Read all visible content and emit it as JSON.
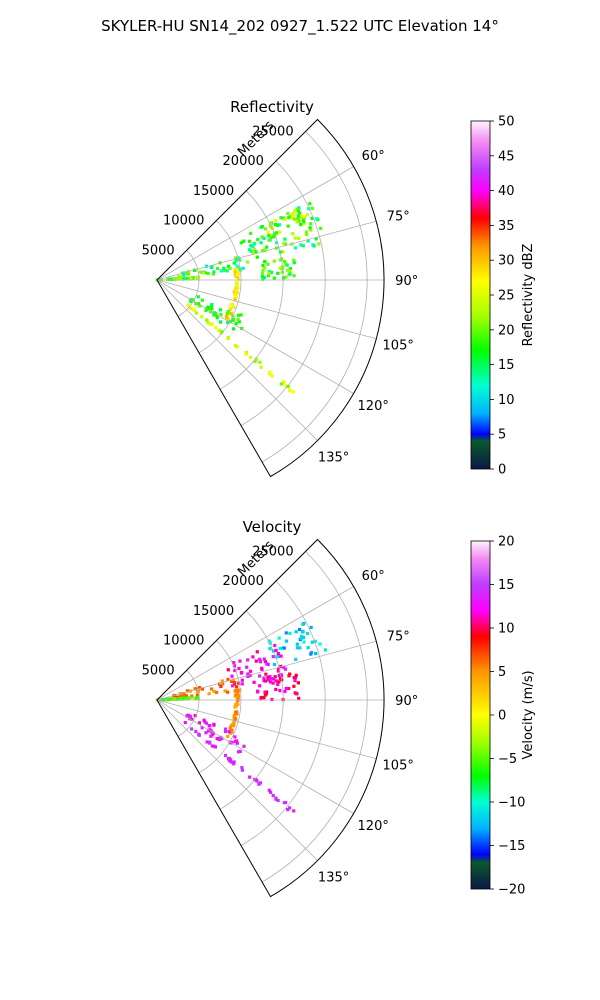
{
  "figure": {
    "suptitle": "SKYLER-HU  SN14_202  0927_1.522 UTC Elevation 14°"
  },
  "chart_data": [
    {
      "type": "heatmap",
      "projection": "polar-sector",
      "title": "Reflectivity",
      "radial_axis_label": "Meters",
      "radial_ticks": [
        5000,
        10000,
        15000,
        20000,
        25000
      ],
      "radial_tick_labels": [
        "5000",
        "10000",
        "15000",
        "20000",
        "25000"
      ],
      "rlim": [
        0,
        27000
      ],
      "azimuth_range_deg": [
        45,
        150
      ],
      "azimuth_ticks": [
        60,
        75,
        90,
        105,
        120,
        135
      ],
      "azimuth_tick_labels": [
        "60°",
        "75°",
        "90°",
        "105°",
        "120°",
        "135°"
      ],
      "grid": true,
      "colorbar": {
        "label": "Reflectivity dBZ",
        "range": [
          0,
          50
        ],
        "ticks": [
          0,
          5,
          10,
          15,
          20,
          25,
          30,
          35,
          40,
          45,
          50
        ],
        "tick_labels": [
          "0",
          "5",
          "10",
          "15",
          "20",
          "25",
          "30",
          "35",
          "40",
          "45",
          "50"
        ],
        "colormap": "pyart_HomeyerRainbow",
        "stops": [
          {
            "v": 0,
            "c": "#0b1747"
          },
          {
            "v": 4,
            "c": "#0a5a2a"
          },
          {
            "v": 5,
            "c": "#0000ff"
          },
          {
            "v": 8,
            "c": "#00b4ff"
          },
          {
            "v": 12,
            "c": "#00ffd2"
          },
          {
            "v": 17,
            "c": "#00ff00"
          },
          {
            "v": 22,
            "c": "#a6ff00"
          },
          {
            "v": 27,
            "c": "#ffff00"
          },
          {
            "v": 32,
            "c": "#ff9600"
          },
          {
            "v": 36,
            "c": "#ff0000"
          },
          {
            "v": 40,
            "c": "#ff00ff"
          },
          {
            "v": 43,
            "c": "#bf3cff"
          },
          {
            "v": 47,
            "c": "#f28cf2"
          },
          {
            "v": 50,
            "c": "#fff2ff"
          }
        ]
      },
      "returns": [
        {
          "feature": "storm-cell",
          "az": [
            63,
            78
          ],
          "r": [
            10000,
            20500
          ],
          "value": 17,
          "spread": 6
        },
        {
          "feature": "storm-core",
          "az": [
            63,
            70
          ],
          "r": [
            14000,
            19500
          ],
          "value": 22,
          "spread": 5
        },
        {
          "feature": "cell-east",
          "az": [
            80,
            90
          ],
          "r": [
            12500,
            16500
          ],
          "value": 18,
          "spread": 4
        },
        {
          "feature": "near-band",
          "az": [
            74,
            84
          ],
          "r": [
            2500,
            11000
          ],
          "value": 17,
          "spread": 6
        },
        {
          "feature": "clutter-ray",
          "az": [
            86,
            88
          ],
          "r": [
            0,
            5000
          ],
          "value": 18,
          "spread": 6
        },
        {
          "feature": "ring-arc",
          "az": [
            80,
            120
          ],
          "r": [
            9300,
            9700
          ],
          "value": 28,
          "spread": 3
        },
        {
          "feature": "ray-southeast",
          "az": [
            128.5,
            130
          ],
          "r": [
            4000,
            21000
          ],
          "value": 24,
          "spread": 4
        },
        {
          "feature": "spots-southeast",
          "az": [
            112,
            124
          ],
          "r": [
            4000,
            12000
          ],
          "value": 17,
          "spread": 3
        }
      ]
    },
    {
      "type": "heatmap",
      "projection": "polar-sector",
      "title": "Velocity",
      "radial_axis_label": "Meters",
      "radial_ticks": [
        5000,
        10000,
        15000,
        20000,
        25000
      ],
      "radial_tick_labels": [
        "5000",
        "10000",
        "15000",
        "20000",
        "25000"
      ],
      "rlim": [
        0,
        27000
      ],
      "azimuth_range_deg": [
        45,
        150
      ],
      "azimuth_ticks": [
        60,
        75,
        90,
        105,
        120,
        135
      ],
      "azimuth_tick_labels": [
        "60°",
        "75°",
        "90°",
        "105°",
        "120°",
        "135°"
      ],
      "grid": true,
      "colorbar": {
        "label": "Velocity (m/s)",
        "range": [
          -20,
          20
        ],
        "ticks": [
          -20,
          -15,
          -10,
          -5,
          0,
          5,
          10,
          15,
          20
        ],
        "tick_labels": [
          "−20",
          "−15",
          "−10",
          "−5",
          "0",
          "5",
          "10",
          "15",
          "20"
        ],
        "colormap": "pyart_BuDRd18",
        "stops": [
          {
            "v": -20,
            "c": "#0b1747"
          },
          {
            "v": -17,
            "c": "#0a5a2a"
          },
          {
            "v": -16,
            "c": "#0000ff"
          },
          {
            "v": -13,
            "c": "#00b4ff"
          },
          {
            "v": -10,
            "c": "#00ffd2"
          },
          {
            "v": -7,
            "c": "#00ff00"
          },
          {
            "v": -3,
            "c": "#a6ff00"
          },
          {
            "v": 0,
            "c": "#ffff00"
          },
          {
            "v": 5,
            "c": "#ff9600"
          },
          {
            "v": 9,
            "c": "#ff0000"
          },
          {
            "v": 12,
            "c": "#ff00ff"
          },
          {
            "v": 15,
            "c": "#bf3cff"
          },
          {
            "v": 18,
            "c": "#f28cf2"
          },
          {
            "v": 20,
            "c": "#fff2ff"
          }
        ]
      },
      "returns": [
        {
          "feature": "outbound-north",
          "az": [
            62,
            74
          ],
          "r": [
            14500,
            21000
          ],
          "value": -12,
          "spread": 2
        },
        {
          "feature": "inbound-core",
          "az": [
            64,
            80
          ],
          "r": [
            9000,
            16000
          ],
          "value": 12,
          "spread": 2
        },
        {
          "feature": "cell-east",
          "az": [
            78,
            90
          ],
          "r": [
            12000,
            17000
          ],
          "value": 11,
          "spread": 2
        },
        {
          "feature": "near-band",
          "az": [
            73,
            84
          ],
          "r": [
            2000,
            10500
          ],
          "value": 6,
          "spread": 2
        },
        {
          "feature": "clutter-ray",
          "az": [
            86,
            88
          ],
          "r": [
            0,
            5000
          ],
          "value": -5,
          "spread": 2
        },
        {
          "feature": "ring-arc",
          "az": [
            80,
            120
          ],
          "r": [
            9300,
            9700
          ],
          "value": 5,
          "spread": 1
        },
        {
          "feature": "ray-southeast",
          "az": [
            128.5,
            130
          ],
          "r": [
            4000,
            21000
          ],
          "value": 14,
          "spread": 1
        },
        {
          "feature": "spots-southeast",
          "az": [
            112,
            124
          ],
          "r": [
            4000,
            12000
          ],
          "value": 13,
          "spread": 2
        }
      ]
    }
  ]
}
